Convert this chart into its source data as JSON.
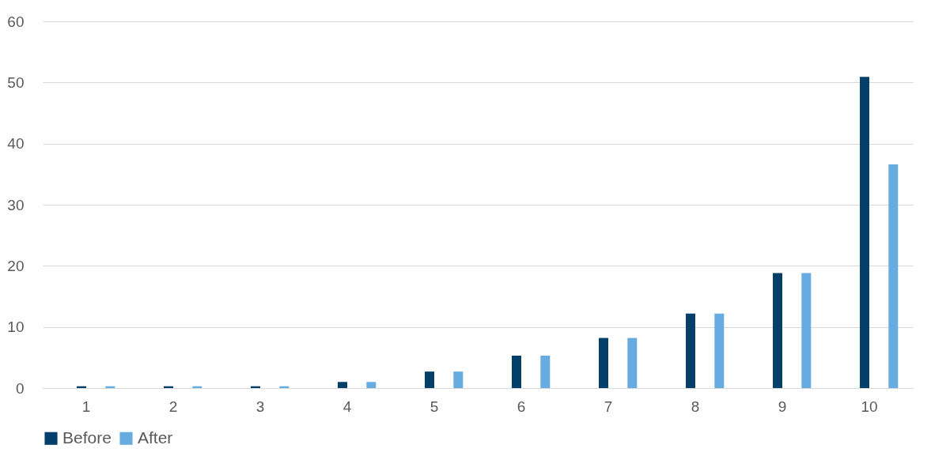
{
  "chart_data": {
    "type": "bar",
    "categories": [
      "1",
      "2",
      "3",
      "4",
      "5",
      "6",
      "7",
      "8",
      "9",
      "10"
    ],
    "series": [
      {
        "name": "Before",
        "color": "#043f6a",
        "values": [
          0.3,
          0.3,
          0.3,
          1.0,
          2.7,
          5.3,
          8.2,
          12.2,
          18.8,
          50.9
        ]
      },
      {
        "name": "After",
        "color": "#66ace0",
        "values": [
          0.3,
          0.3,
          0.3,
          1.0,
          2.7,
          5.3,
          8.2,
          12.2,
          18.8,
          36.6
        ]
      }
    ],
    "ylim": [
      0,
      60
    ],
    "yticks": [
      0,
      10,
      20,
      30,
      40,
      50,
      60
    ],
    "grid": "y",
    "legend": "bottom"
  }
}
